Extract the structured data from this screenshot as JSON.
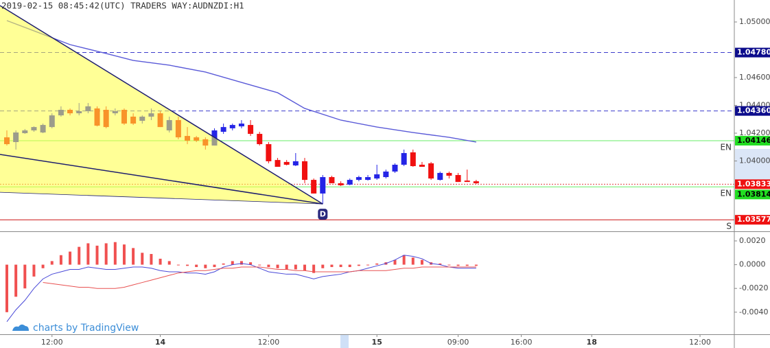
{
  "chart_data": [
    {
      "type": "candlestick",
      "title": "2019-02-15 08:45:42(UTC) TRADERS WAY:AUDNZDI:H1",
      "up_color": "#2424e6",
      "down_color": "#f01010",
      "open": [
        1.0417,
        1.04136,
        1.042,
        1.0422,
        1.04205,
        1.04244,
        1.04328,
        1.04368,
        1.04343,
        1.04358,
        1.04378,
        1.04368,
        1.04343,
        1.04368,
        1.04319,
        1.04289,
        1.04319,
        1.04343,
        1.0422,
        1.04294,
        1.0418,
        1.0417,
        1.04156,
        1.04111,
        1.0421,
        1.04235,
        1.04249,
        1.04259,
        1.04195,
        1.04121,
        1.04007,
        1.03993,
        1.03968,
        1.03998,
        1.03864,
        1.03766,
        1.03884,
        1.0384,
        1.0383,
        1.03864,
        1.03864,
        1.03874,
        1.03884,
        1.03924,
        1.03973,
        1.04062,
        1.03973,
        1.03983,
        1.03864,
        1.03914,
        1.03899,
        1.03859,
        1.03854
      ],
      "high": [
        1.0422,
        1.0422,
        1.0423,
        1.04249,
        1.04269,
        1.04343,
        1.04393,
        1.04378,
        1.04417,
        1.04417,
        1.04393,
        1.04393,
        1.04378,
        1.04378,
        1.04343,
        1.04328,
        1.04378,
        1.04358,
        1.04319,
        1.04319,
        1.04244,
        1.0418,
        1.0417,
        1.04235,
        1.04269,
        1.04269,
        1.04294,
        1.04294,
        1.0421,
        1.04136,
        1.04022,
        1.04007,
        1.04057,
        1.04022,
        1.03874,
        1.03899,
        1.03894,
        1.03854,
        1.03874,
        1.03894,
        1.03899,
        1.03973,
        1.03938,
        1.03983,
        1.04082,
        1.04082,
        1.03993,
        1.03993,
        1.03924,
        1.03924,
        1.03914,
        1.03938,
        1.03864
      ],
      "low": [
        1.04111,
        1.04082,
        1.04195,
        1.0421,
        1.042,
        1.04235,
        1.04319,
        1.04328,
        1.04328,
        1.04343,
        1.04249,
        1.04235,
        1.04328,
        1.04259,
        1.04259,
        1.04269,
        1.04294,
        1.04244,
        1.04205,
        1.04156,
        1.04121,
        1.04136,
        1.04082,
        1.04111,
        1.04195,
        1.0422,
        1.04235,
        1.0418,
        1.04111,
        1.03983,
        1.03958,
        1.03968,
        1.03963,
        1.0384,
        1.03766,
        1.03691,
        1.0384,
        1.0382,
        1.03825,
        1.03854,
        1.03859,
        1.03864,
        1.03874,
        1.03914,
        1.03963,
        1.03958,
        1.03958,
        1.03864,
        1.03859,
        1.03874,
        1.03849,
        1.03849,
        1.03835
      ],
      "close": [
        1.04121,
        1.04205,
        1.0422,
        1.04244,
        1.04259,
        1.04328,
        1.04368,
        1.04343,
        1.04358,
        1.04393,
        1.04254,
        1.04244,
        1.04358,
        1.04269,
        1.04269,
        1.04319,
        1.04343,
        1.04244,
        1.04294,
        1.0417,
        1.04146,
        1.04146,
        1.04111,
        1.0422,
        1.04244,
        1.04259,
        1.04269,
        1.04195,
        1.04121,
        1.03998,
        1.03958,
        1.03973,
        1.03998,
        1.03864,
        1.03766,
        1.03884,
        1.0384,
        1.03825,
        1.03864,
        1.03884,
        1.03884,
        1.03904,
        1.03924,
        1.03973,
        1.04057,
        1.03963,
        1.03958,
        1.03874,
        1.03914,
        1.03894,
        1.03849,
        1.03849,
        1.0384
      ],
      "moving_average": {
        "color": "#5a5ad8",
        "x": [
          0,
          3,
          7,
          11,
          14,
          18,
          22,
          26,
          30,
          33,
          37,
          41,
          45,
          49,
          52
        ],
        "values": [
          1.0501,
          1.04936,
          1.04837,
          1.04773,
          1.04723,
          1.04689,
          1.0464,
          1.04565,
          1.04491,
          1.04378,
          1.04294,
          1.04244,
          1.04205,
          1.0417,
          1.04136
        ]
      },
      "pattern": {
        "label": "D",
        "fill": "#ffff40",
        "line_color": "#1e1e6e",
        "points": [
          {
            "x": -0.76,
            "y": 1.05118
          },
          {
            "x": 35,
            "y": 1.03691
          },
          {
            "x": -0.76,
            "y": 1.03775
          },
          {
            "x": -0.76,
            "y": 1.04047
          }
        ]
      },
      "levels": [
        {
          "value": 1.0478,
          "label": "1.04780",
          "color": "#3a3acc",
          "style": "dashed",
          "label_bg": "#0c0c8c",
          "label_color": "#ffffff"
        },
        {
          "value": 1.0436,
          "label": "1.04360",
          "color": "#3a3acc",
          "style": "dashed",
          "label_bg": "#0c0c8c",
          "label_color": "#ffffff"
        },
        {
          "value": 1.04146,
          "label": "1.04146",
          "color": "#66ee66",
          "style": "solid",
          "label_bg": "#22dd22",
          "label_color": "#000000",
          "tag": "EN"
        },
        {
          "value": 1.03833,
          "label": "1.03833",
          "color": "#e04040",
          "style": "dotted",
          "label_bg": "#ee1111",
          "label_color": "#ffffff"
        },
        {
          "value": 1.03814,
          "label": "1.03814",
          "color": "#66ee66",
          "style": "solid",
          "label_bg": "#22dd22",
          "label_color": "#000000",
          "tag": "EN"
        },
        {
          "value": 1.03577,
          "label": "1.03577",
          "color": "#cc1111",
          "style": "solid",
          "label_bg": "#ee1111",
          "label_color": "#ffffff",
          "tag": "S"
        }
      ],
      "xlim": [
        -0.76,
        80.6
      ],
      "ylim": [
        1.03494,
        1.05158
      ],
      "yticks": [
        {
          "value": 1.05,
          "label": "1.05000"
        },
        {
          "value": 1.046,
          "label": "1.04600"
        },
        {
          "value": 1.044,
          "label": "1.04400"
        },
        {
          "value": 1.042,
          "label": "1.04200"
        },
        {
          "value": 1.04,
          "label": "1.04000"
        }
      ],
      "grid": false
    },
    {
      "type": "macd",
      "watermark": "charts by TradingView",
      "histogram": {
        "color": "#f05050",
        "values": [
          -0.004,
          -0.0027,
          -0.002,
          -0.001,
          -0.0003,
          0.0003,
          0.0008,
          0.0011,
          0.0015,
          0.0018,
          0.0016,
          0.0018,
          0.0019,
          0.0017,
          0.0014,
          0.001,
          0.0009,
          0.0005,
          0.0003,
          0.0,
          -0.0001,
          -0.0002,
          -0.0003,
          -0.0002,
          0.0001,
          0.0003,
          0.0003,
          0.0002,
          0.0,
          -0.0002,
          -0.0003,
          -0.0004,
          -0.0004,
          -0.0005,
          -0.0007,
          -0.0003,
          -0.0002,
          -0.0002,
          -0.0002,
          -0.0001,
          0.0,
          0.0001,
          0.0002,
          0.0004,
          0.0008,
          0.0006,
          0.0004,
          0.0002,
          0.0001,
          0.0,
          -0.0001,
          -0.0001,
          -0.0001
        ]
      },
      "series": [
        {
          "color": "#4848d8",
          "values": [
            -0.0048,
            -0.0038,
            -0.003,
            -0.002,
            -0.0012,
            -0.0008,
            -0.0006,
            -0.0004,
            -0.0004,
            -0.0002,
            -0.0003,
            -0.0004,
            -0.0004,
            -0.0003,
            -0.0002,
            -0.0002,
            -0.0003,
            -0.0005,
            -0.0006,
            -0.0006,
            -0.0007,
            -0.0007,
            -0.0008,
            -0.0006,
            -0.0002,
            0.0,
            0.0001,
            0.0,
            -0.0003,
            -0.0006,
            -0.0007,
            -0.0008,
            -0.0008,
            -0.001,
            -0.0012,
            -0.001,
            -0.0009,
            -0.0008,
            -0.0006,
            -0.0005,
            -0.0003,
            -0.0001,
            0.0001,
            0.0004,
            0.0008,
            0.0007,
            0.0005,
            0.0001,
            0.0,
            -0.0002,
            -0.0003,
            -0.0003,
            -0.0003
          ]
        },
        {
          "color": "#e85050",
          "values": [
            null,
            null,
            null,
            null,
            -0.0015,
            -0.0016,
            -0.0017,
            -0.0018,
            -0.0019,
            -0.0019,
            -0.002,
            -0.002,
            -0.002,
            -0.0019,
            -0.0017,
            -0.0015,
            -0.0013,
            -0.0011,
            -0.0009,
            -0.0007,
            -0.0006,
            -0.0005,
            -0.0005,
            -0.0004,
            -0.0003,
            -0.0003,
            -0.0002,
            -0.0002,
            -0.0002,
            -0.0003,
            -0.0004,
            -0.0004,
            -0.0005,
            -0.0005,
            -0.0006,
            -0.0006,
            -0.0006,
            -0.0006,
            -0.0006,
            -0.0005,
            -0.0005,
            -0.0005,
            -0.0005,
            -0.0004,
            -0.0003,
            -0.0003,
            -0.0002,
            -0.0002,
            -0.0002,
            -0.0002,
            -0.0002,
            -0.0002,
            -0.0002
          ]
        }
      ],
      "xlim": [
        -0.76,
        80.6
      ],
      "ylim": [
        -0.00586,
        0.00275
      ],
      "yticks": [
        {
          "value": 0.002,
          "label": "0.0020"
        },
        {
          "value": 0,
          "label": "0.0000"
        },
        {
          "value": -0.002,
          "label": "-0.0020"
        },
        {
          "value": -0.004,
          "label": "-0.0040"
        }
      ],
      "xticks": [
        {
          "value": 5,
          "label": "12:00"
        },
        {
          "value": 17,
          "label": "14"
        },
        {
          "value": 29,
          "label": "12:00"
        },
        {
          "value": 41,
          "label": "15"
        },
        {
          "value": 50,
          "label": "09:00"
        },
        {
          "value": 57,
          "label": "16:00"
        },
        {
          "value": 64.8,
          "label": "18"
        },
        {
          "value": 76.8,
          "label": "12:00"
        }
      ]
    }
  ]
}
